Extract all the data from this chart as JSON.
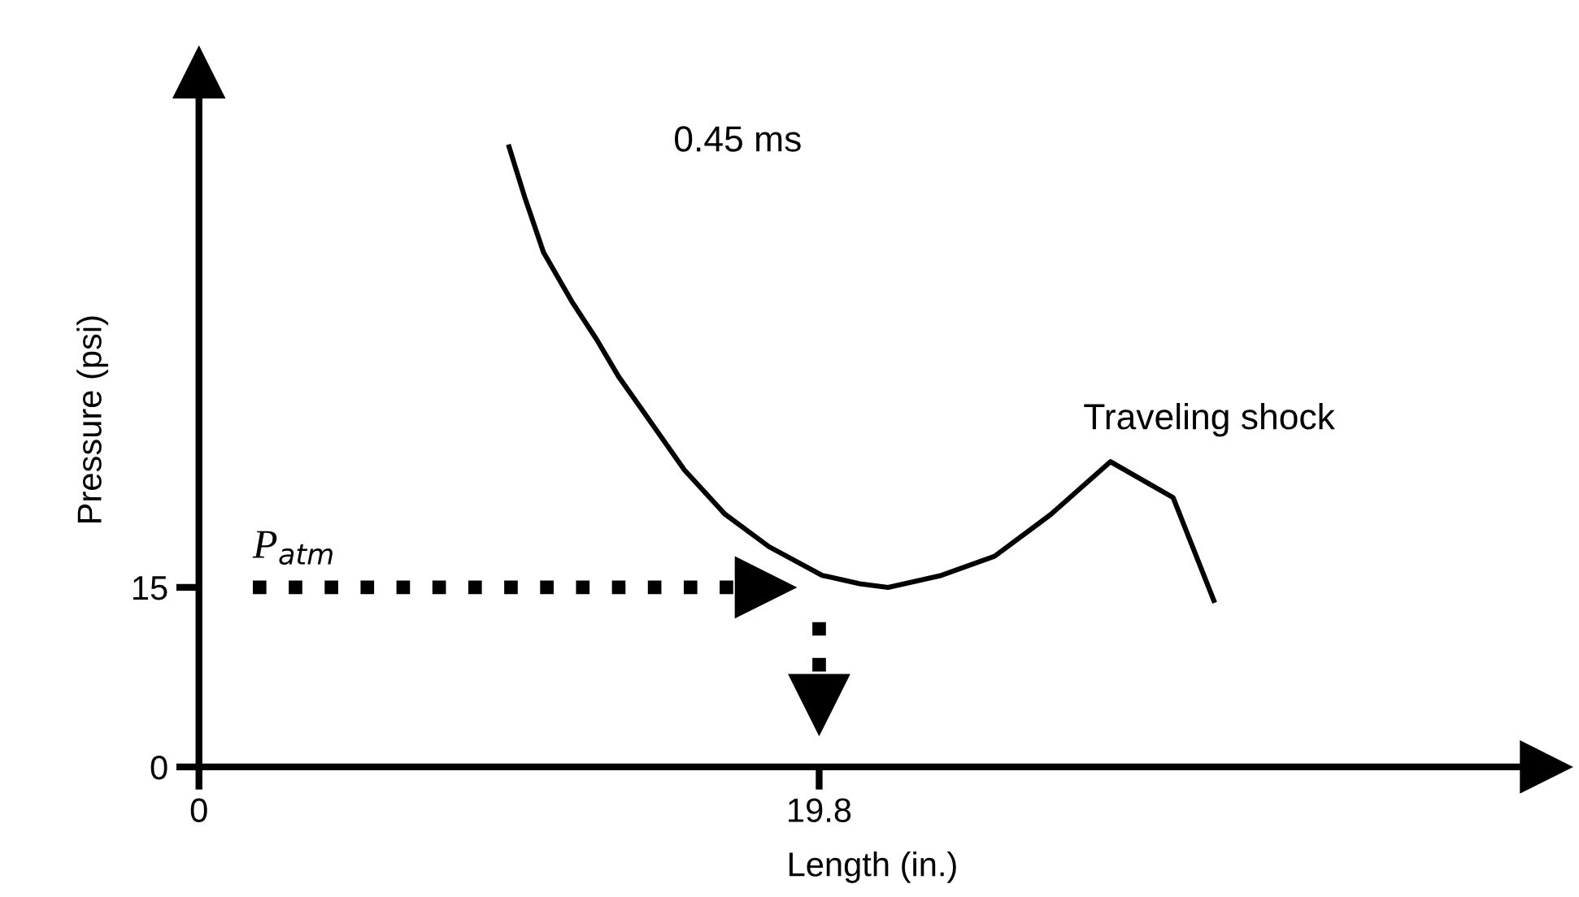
{
  "chart_data": {
    "type": "line",
    "xlabel": "Length (in.)",
    "ylabel": "Pressure (psi)",
    "x": [
      9.9,
      10.4,
      11.0,
      11.9,
      12.7,
      13.4,
      14.4,
      15.5,
      16.8,
      18.2,
      19.9,
      21.1,
      22.0,
      23.7,
      25.4,
      27.2,
      29.1,
      31.1,
      32.4
    ],
    "series": [
      {
        "color": "#000000",
        "values": [
          51.8,
          47.6,
          43.0,
          38.9,
          35.7,
          32.6,
          28.9,
          24.8,
          21.1,
          18.4,
          16.0,
          15.3,
          15.0,
          16.0,
          17.6,
          21.1,
          25.5,
          22.5,
          13.9
        ]
      }
    ],
    "xlim": [
      0,
      43
    ],
    "ylim": [
      0,
      58
    ],
    "xticks": [
      {
        "value": 0,
        "label": "0"
      },
      {
        "value": 19.8,
        "label": "19.8"
      }
    ],
    "yticks": [
      {
        "value": 0,
        "label": "0"
      },
      {
        "value": 15,
        "label": "15"
      }
    ],
    "annotations": [
      "0.45 ms",
      "Traveling shock"
    ],
    "ref_lines": [
      {
        "axis": "y",
        "value": 15,
        "label": "P$_{atm}$",
        "line_style": "dotted",
        "color": "#000000"
      }
    ],
    "grid": false,
    "legend": false,
    "marker": "none",
    "line_style": "solid"
  }
}
